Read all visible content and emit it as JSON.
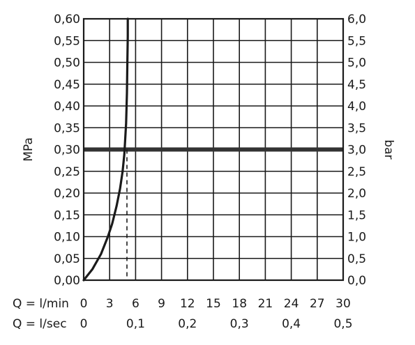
{
  "chart_data": {
    "type": "line",
    "title": "",
    "y_left": {
      "label": "MPa",
      "range": [
        0,
        0.6
      ],
      "ticks": [
        "0,00",
        "0,05",
        "0,10",
        "0,15",
        "0,20",
        "0,25",
        "0,30",
        "0,35",
        "0,40",
        "0,45",
        "0,50",
        "0,55",
        "0,60"
      ]
    },
    "y_right": {
      "label": "bar",
      "range": [
        0,
        6
      ],
      "ticks": [
        "0,0",
        "0,5",
        "1,0",
        "1,5",
        "2,0",
        "2,5",
        "3,0",
        "3,5",
        "4,0",
        "4,5",
        "5,0",
        "5,5",
        "6,0"
      ]
    },
    "x_primary": {
      "label": "Q = l/min",
      "range": [
        0,
        30
      ],
      "ticks": [
        {
          "value": 0,
          "label": "0"
        },
        {
          "value": 3,
          "label": "3"
        },
        {
          "value": 6,
          "label": "6"
        },
        {
          "value": 9,
          "label": "9"
        },
        {
          "value": 12,
          "label": "12"
        },
        {
          "value": 15,
          "label": "15"
        },
        {
          "value": 18,
          "label": "18"
        },
        {
          "value": 21,
          "label": "21"
        },
        {
          "value": 24,
          "label": "24"
        },
        {
          "value": 27,
          "label": "27"
        },
        {
          "value": 30,
          "label": "30"
        }
      ]
    },
    "x_secondary": {
      "label": "Q = l/sec",
      "ticks": [
        {
          "value": 0,
          "label": "0"
        },
        {
          "value": 6,
          "label": "0,1"
        },
        {
          "value": 12,
          "label": "0,2"
        },
        {
          "value": 18,
          "label": "0,3"
        },
        {
          "value": 24,
          "label": "0,4"
        },
        {
          "value": 30,
          "label": "0,5"
        }
      ]
    },
    "grid": true,
    "series": [
      {
        "x": [
          0,
          1.0,
          2.0,
          2.8,
          3.3,
          3.8,
          4.2,
          4.5,
          4.7,
          4.9,
          5.0,
          5.05,
          5.1,
          5.1
        ],
        "y": [
          0,
          0.025,
          0.06,
          0.1,
          0.13,
          0.17,
          0.21,
          0.25,
          0.29,
          0.36,
          0.43,
          0.5,
          0.56,
          0.6
        ],
        "color": "#1a1a1a"
      }
    ],
    "reference_line": {
      "y": 0.3,
      "color": "#333333"
    },
    "dropline": {
      "x": 5.0,
      "y": 0.3,
      "style": "dashed"
    }
  }
}
